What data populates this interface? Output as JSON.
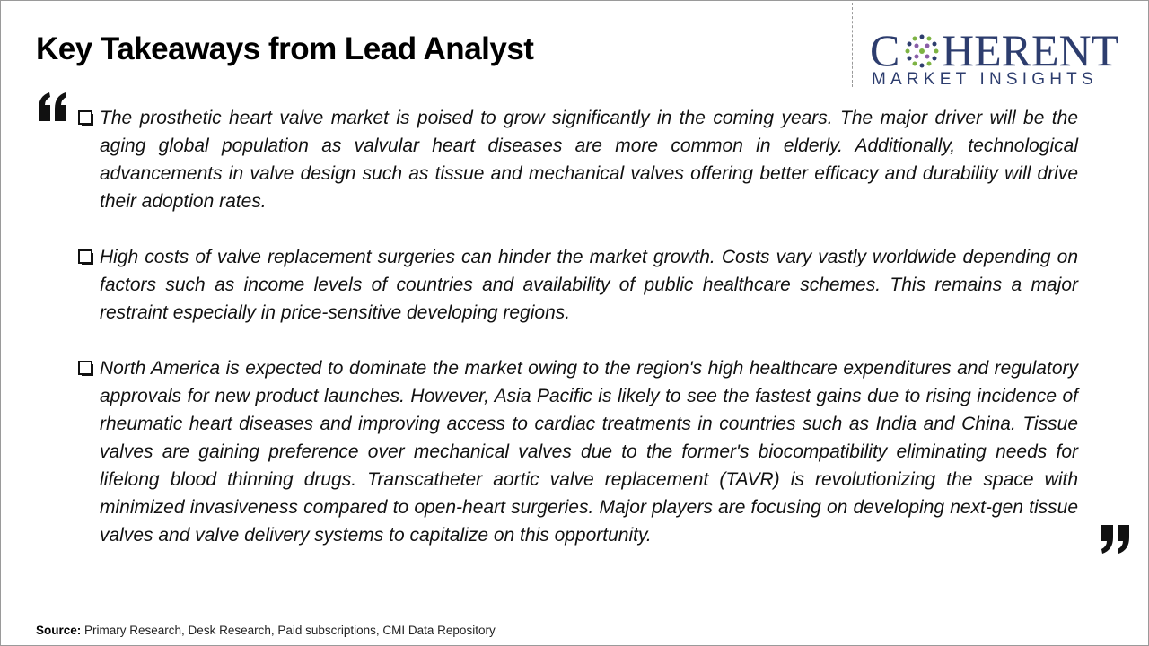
{
  "header": {
    "title": "Key Takeaways from Lead Analyst"
  },
  "logo": {
    "name_start": "C",
    "name_end": "HERENT",
    "tagline": "MARKET INSIGHTS"
  },
  "bullets": [
    "The prosthetic heart valve market is poised to grow significantly in the coming years. The major driver will be the aging global population as valvular heart diseases are more common in elderly. Additionally, technological advancements in valve design such as tissue and mechanical valves offering better efficacy and durability will drive their adoption rates.",
    "High costs of valve replacement surgeries can hinder the market growth. Costs vary vastly worldwide depending on factors such as income levels of countries and availability of public healthcare schemes. This remains a major restraint especially in price-sensitive developing regions.",
    "North America is expected to dominate the market owing to the region's high healthcare expenditures and regulatory approvals for new product launches. However, Asia Pacific is likely to see the fastest gains due to rising incidence of rheumatic heart diseases and improving access to cardiac treatments in countries such as India and China. Tissue valves are gaining preference over mechanical valves due to the former's biocompatibility eliminating needs for lifelong blood thinning drugs. Transcatheter aortic valve replacement (TAVR) is revolutionizing the space with minimized invasiveness compared to open-heart surgeries. Major players are focusing on developing next-gen tissue valves and valve delivery systems to capitalize on this opportunity."
  ],
  "source": {
    "label": "Source:",
    "text": "Primary Research, Desk Research, Paid subscriptions, CMI Data Repository"
  }
}
